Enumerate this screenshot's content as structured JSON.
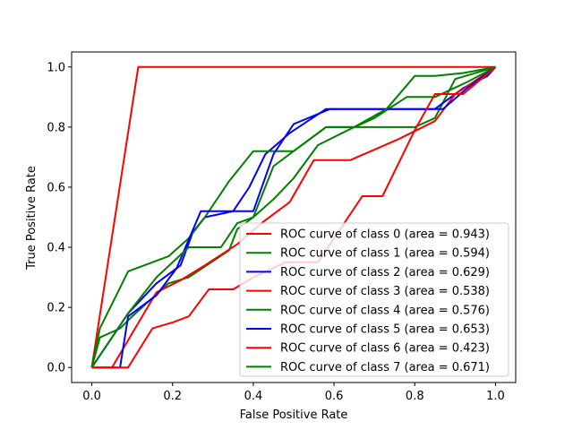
{
  "chart_data": {
    "type": "line",
    "title": "",
    "xlabel": "False Positive Rate",
    "ylabel": "True Positive Rate",
    "xlim": [
      -0.05,
      1.05
    ],
    "ylim": [
      -0.05,
      1.05
    ],
    "x_ticks": [
      "0.0",
      "0.2",
      "0.4",
      "0.6",
      "0.8",
      "1.0"
    ],
    "y_ticks": [
      "0.0",
      "0.2",
      "0.4",
      "0.6",
      "0.8",
      "1.0"
    ],
    "grid": false,
    "legend_position": "lower-right",
    "series": [
      {
        "name": "ROC curve of class 0 (area = 0.943)",
        "color": "#ff0000",
        "x": [
          0,
          0.115,
          1
        ],
        "y": [
          0,
          1.0,
          1.0
        ]
      },
      {
        "name": "ROC curve of class 1 (area = 0.594)",
        "color": "#008000",
        "x": [
          0,
          0.02,
          0.07,
          0.1,
          0.19,
          0.24,
          0.34,
          0.36,
          0.4,
          0.45,
          0.5,
          0.58,
          0.65,
          0.72,
          0.8,
          0.85,
          0.9,
          1.0
        ],
        "y": [
          0,
          0.1,
          0.13,
          0.17,
          0.28,
          0.3,
          0.39,
          0.46,
          0.5,
          0.67,
          0.72,
          0.8,
          0.8,
          0.8,
          0.8,
          0.83,
          0.96,
          1.0
        ]
      },
      {
        "name": "ROC curve of class 2 (area = 0.629)",
        "color": "#0000ff",
        "x": [
          0,
          0.05,
          0.09,
          0.16,
          0.22,
          0.25,
          0.28,
          0.35,
          0.39,
          0.43,
          0.49,
          0.58,
          0.65,
          0.75,
          0.85,
          0.92,
          0.98,
          1.0
        ],
        "y": [
          0,
          0.1,
          0.18,
          0.28,
          0.34,
          0.45,
          0.5,
          0.52,
          0.6,
          0.71,
          0.78,
          0.86,
          0.86,
          0.86,
          0.86,
          0.93,
          0.97,
          1.0
        ]
      },
      {
        "name": "ROC curve of class 3 (area = 0.538)",
        "color": "#ff0000",
        "x": [
          0,
          0.05,
          0.16,
          0.22,
          0.28,
          0.36,
          0.42,
          0.49,
          0.55,
          0.6,
          0.64,
          0.76,
          0.85,
          0.9,
          1.0
        ],
        "y": [
          0,
          0.0,
          0.25,
          0.29,
          0.34,
          0.41,
          0.48,
          0.55,
          0.69,
          0.69,
          0.69,
          0.76,
          0.82,
          0.91,
          1.0
        ]
      },
      {
        "name": "ROC curve of class 4 (area = 0.576)",
        "color": "#008000",
        "x": [
          0,
          0.02,
          0.09,
          0.19,
          0.24,
          0.28,
          0.34,
          0.4,
          0.5,
          0.58,
          0.65,
          0.7,
          0.78,
          0.85,
          0.93,
          1.0
        ],
        "y": [
          0,
          0.13,
          0.32,
          0.37,
          0.43,
          0.5,
          0.62,
          0.72,
          0.72,
          0.8,
          0.8,
          0.83,
          0.9,
          0.9,
          0.95,
          1.0
        ]
      },
      {
        "name": "ROC curve of class 5 (area = 0.653)",
        "color": "#0000ff",
        "x": [
          0,
          0.07,
          0.09,
          0.16,
          0.21,
          0.27,
          0.32,
          0.4,
          0.45,
          0.5,
          0.59,
          0.65,
          0.72,
          0.8,
          0.87,
          0.93,
          1.0
        ],
        "y": [
          0,
          0.0,
          0.17,
          0.24,
          0.33,
          0.52,
          0.52,
          0.52,
          0.71,
          0.81,
          0.86,
          0.86,
          0.86,
          0.86,
          0.86,
          0.93,
          1.0
        ]
      },
      {
        "name": "ROC curve of class 6 (area = 0.423)",
        "color": "#ff0000",
        "x": [
          0,
          0.05,
          0.09,
          0.15,
          0.2,
          0.24,
          0.29,
          0.35,
          0.4,
          0.48,
          0.56,
          0.6,
          0.67,
          0.72,
          0.8,
          0.85,
          0.92,
          1.0
        ],
        "y": [
          0,
          0.0,
          0.0,
          0.13,
          0.15,
          0.17,
          0.26,
          0.26,
          0.3,
          0.35,
          0.35,
          0.43,
          0.57,
          0.57,
          0.79,
          0.91,
          0.91,
          1.0
        ]
      },
      {
        "name": "ROC curve of class 7 (area = 0.671)",
        "color": "#008000",
        "x": [
          0,
          0.09,
          0.16,
          0.24,
          0.32,
          0.36,
          0.4,
          0.45,
          0.5,
          0.56,
          0.65,
          0.73,
          0.8,
          0.85,
          0.92,
          1.0
        ],
        "y": [
          0,
          0.18,
          0.3,
          0.4,
          0.4,
          0.48,
          0.5,
          0.56,
          0.63,
          0.74,
          0.8,
          0.86,
          0.97,
          0.97,
          0.98,
          1.0
        ]
      }
    ]
  }
}
